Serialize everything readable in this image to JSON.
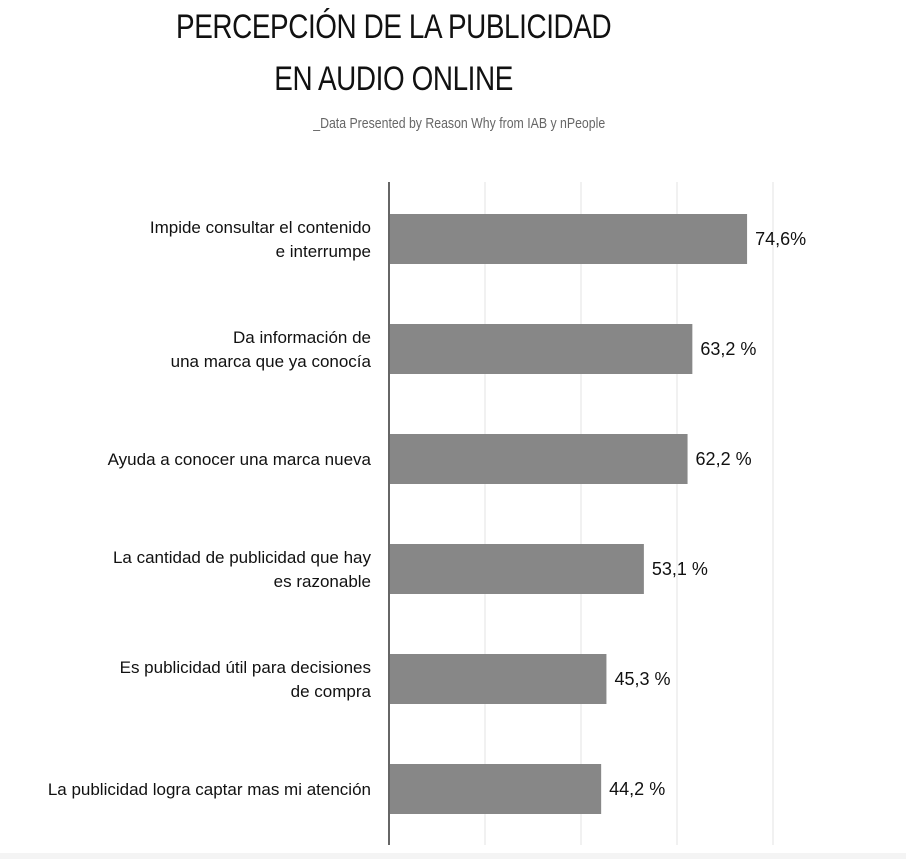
{
  "title_line1": "PERCEPCIÓN DE LA PUBLICIDAD",
  "title_line2": "EN AUDIO ONLINE",
  "subtitle": "_Data Presented by Reason Why from IAB y nPeople",
  "colors": {
    "bar": "#878787",
    "highlight_label": "#3fc8ea",
    "axis": "#000000",
    "grid": "#e3e3e3"
  },
  "chart_data": {
    "type": "bar",
    "orientation": "horizontal",
    "xlim": [
      0,
      100
    ],
    "grid": true,
    "categories": [
      [
        "Impide consultar el contenido",
        "e interrumpe"
      ],
      [
        "Da información de",
        "una marca que ya conocía"
      ],
      [
        "Ayuda a conocer una marca nueva"
      ],
      [
        "La cantidad de publicidad que hay",
        "es razonable"
      ],
      [
        "Es publicidad útil para decisiones",
        "de compra"
      ],
      [
        "La publicidad logra captar mas mi atención"
      ]
    ],
    "values": [
      74.6,
      63.2,
      62.2,
      53.1,
      45.3,
      44.2
    ],
    "value_labels": [
      "74,6%",
      "63,2 %",
      "62,2 %",
      "53,1 %",
      "45,3 %",
      "44,2 %"
    ],
    "highlight_index": 0
  }
}
